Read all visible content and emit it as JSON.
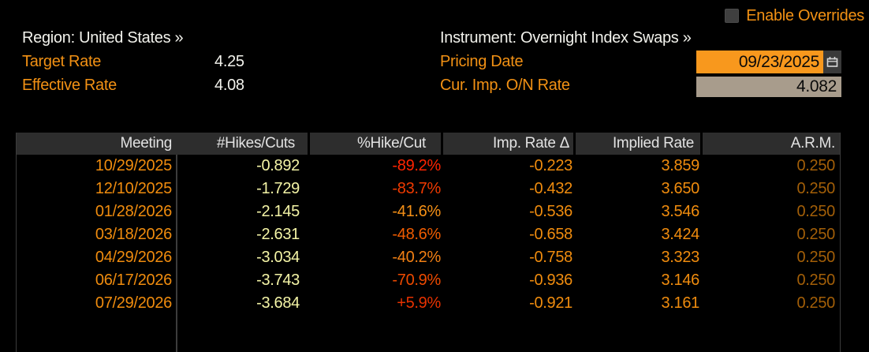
{
  "header": {
    "enable_overrides_label": "Enable Overrides",
    "region_label": "Region:",
    "region_value": "United States »",
    "instrument_label": "Instrument:",
    "instrument_value": "Overnight Index Swaps »",
    "target_rate_label": "Target Rate",
    "target_rate_value": "4.25",
    "effective_rate_label": "Effective Rate",
    "effective_rate_value": "4.08",
    "pricing_date_label": "Pricing Date",
    "pricing_date_value": "09/23/2025",
    "cur_imp_on_rate_label": "Cur. Imp. O/N Rate",
    "cur_imp_on_rate_value": "4.082"
  },
  "icons": {
    "calendar_icon": "calendar-icon",
    "checkbox_icon": "checkbox-unchecked"
  },
  "colors": {
    "background": "#000000",
    "amber_label": "#f29114",
    "white_text": "#f2f2ec",
    "header_row_bg": "#2d2d2d",
    "header_row_text": "#e2e2e2",
    "meeting_orange": "#f08c0e",
    "hikes_pale_yellow": "#f4f4a6",
    "arm_dim_amber": "#a35f08",
    "pricing_date_bg": "#f8981d",
    "rate_field_bg": "#a89c8c",
    "table_border": "#3c3c3c"
  },
  "table": {
    "columns": [
      "Meeting",
      "#Hikes/Cuts",
      "%Hike/Cut",
      "Imp. Rate Δ",
      "Implied Rate",
      "A.R.M."
    ],
    "rows": [
      {
        "meeting": "10/29/2025",
        "hikes": "-0.892",
        "pct": "-89.2%",
        "pct_color": "#ff2400",
        "delta": "-0.223",
        "implied": "3.859",
        "arm": "0.250"
      },
      {
        "meeting": "12/10/2025",
        "hikes": "-1.729",
        "pct": "-83.7%",
        "pct_color": "#f03a00",
        "delta": "-0.432",
        "implied": "3.650",
        "arm": "0.250"
      },
      {
        "meeting": "01/28/2026",
        "hikes": "-2.145",
        "pct": "-41.6%",
        "pct_color": "#f59016",
        "delta": "-0.536",
        "implied": "3.546",
        "arm": "0.250"
      },
      {
        "meeting": "03/18/2026",
        "hikes": "-2.631",
        "pct": "-48.6%",
        "pct_color": "#f05c00",
        "delta": "-0.658",
        "implied": "3.424",
        "arm": "0.250"
      },
      {
        "meeting": "04/29/2026",
        "hikes": "-3.034",
        "pct": "-40.2%",
        "pct_color": "#f28014",
        "delta": "-0.758",
        "implied": "3.323",
        "arm": "0.250"
      },
      {
        "meeting": "06/17/2026",
        "hikes": "-3.743",
        "pct": "-70.9%",
        "pct_color": "#ee4a00",
        "delta": "-0.936",
        "implied": "3.146",
        "arm": "0.250"
      },
      {
        "meeting": "07/29/2026",
        "hikes": "-3.684",
        "pct": "+5.9%",
        "pct_color": "#e83200",
        "delta": "-0.921",
        "implied": "3.161",
        "arm": "0.250"
      }
    ]
  }
}
